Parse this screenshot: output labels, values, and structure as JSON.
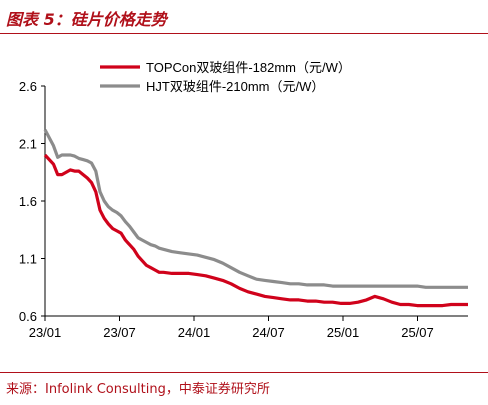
{
  "header": {
    "title": "图表 5：硅片价格走势"
  },
  "footer": {
    "source": "来源：Infolink Consulting，中泰证券研究所"
  },
  "chart_data": {
    "type": "line",
    "x_ticks": [
      "23/01",
      "23/07",
      "24/01",
      "24/07",
      "25/01",
      "25/07"
    ],
    "y_ticks": [
      "2.6",
      "2.1",
      "1.6",
      "1.1",
      "0.6"
    ],
    "ylim": [
      0.6,
      2.6
    ],
    "legend_position": "top-center",
    "series": [
      {
        "name": "TOPCon双玻组件-182mm（元/W）",
        "color": "#d0021b",
        "x": [
          0.0,
          0.02,
          0.03,
          0.04,
          0.06,
          0.07,
          0.08,
          0.09,
          0.1,
          0.11,
          0.12,
          0.13,
          0.14,
          0.15,
          0.16,
          0.17,
          0.18,
          0.19,
          0.2,
          0.21,
          0.22,
          0.23,
          0.24,
          0.25,
          0.26,
          0.27,
          0.28,
          0.3,
          0.32,
          0.34,
          0.36,
          0.38,
          0.4,
          0.42,
          0.44,
          0.46,
          0.48,
          0.5,
          0.52,
          0.54,
          0.56,
          0.58,
          0.6,
          0.62,
          0.64,
          0.66,
          0.68,
          0.7,
          0.72,
          0.74,
          0.76,
          0.78,
          0.8,
          0.82,
          0.84,
          0.86,
          0.88,
          0.9,
          0.92,
          0.94,
          0.96,
          0.98,
          1.0
        ],
        "values": [
          2.0,
          1.92,
          1.83,
          1.83,
          1.87,
          1.86,
          1.86,
          1.83,
          1.8,
          1.76,
          1.68,
          1.52,
          1.45,
          1.4,
          1.36,
          1.34,
          1.32,
          1.26,
          1.22,
          1.18,
          1.12,
          1.08,
          1.04,
          1.02,
          1.0,
          0.98,
          0.98,
          0.97,
          0.97,
          0.97,
          0.96,
          0.95,
          0.93,
          0.91,
          0.88,
          0.84,
          0.81,
          0.79,
          0.77,
          0.76,
          0.75,
          0.74,
          0.74,
          0.73,
          0.73,
          0.72,
          0.72,
          0.71,
          0.71,
          0.72,
          0.74,
          0.77,
          0.75,
          0.72,
          0.7,
          0.7,
          0.69,
          0.69,
          0.69,
          0.69,
          0.7,
          0.7,
          0.7
        ]
      },
      {
        "name": "HJT双玻组件-210mm（元/W）",
        "color": "#8c8c8c",
        "x": [
          0.0,
          0.02,
          0.03,
          0.04,
          0.06,
          0.07,
          0.08,
          0.09,
          0.1,
          0.11,
          0.12,
          0.13,
          0.14,
          0.15,
          0.16,
          0.17,
          0.18,
          0.19,
          0.2,
          0.21,
          0.22,
          0.23,
          0.24,
          0.25,
          0.26,
          0.27,
          0.28,
          0.3,
          0.32,
          0.34,
          0.36,
          0.38,
          0.4,
          0.42,
          0.44,
          0.46,
          0.48,
          0.5,
          0.52,
          0.54,
          0.56,
          0.58,
          0.6,
          0.62,
          0.64,
          0.66,
          0.68,
          0.7,
          0.72,
          0.74,
          0.76,
          0.78,
          0.8,
          0.82,
          0.84,
          0.86,
          0.88,
          0.9,
          0.92,
          0.94,
          0.96,
          0.98,
          1.0
        ],
        "values": [
          2.22,
          2.08,
          1.98,
          2.0,
          2.0,
          1.99,
          1.97,
          1.96,
          1.95,
          1.93,
          1.86,
          1.68,
          1.6,
          1.55,
          1.52,
          1.5,
          1.47,
          1.42,
          1.38,
          1.33,
          1.28,
          1.26,
          1.24,
          1.22,
          1.21,
          1.19,
          1.18,
          1.16,
          1.15,
          1.14,
          1.13,
          1.11,
          1.09,
          1.06,
          1.02,
          0.98,
          0.95,
          0.92,
          0.91,
          0.9,
          0.89,
          0.88,
          0.88,
          0.87,
          0.87,
          0.87,
          0.86,
          0.86,
          0.86,
          0.86,
          0.86,
          0.86,
          0.86,
          0.86,
          0.86,
          0.86,
          0.86,
          0.85,
          0.85,
          0.85,
          0.85,
          0.85,
          0.85
        ]
      }
    ]
  }
}
